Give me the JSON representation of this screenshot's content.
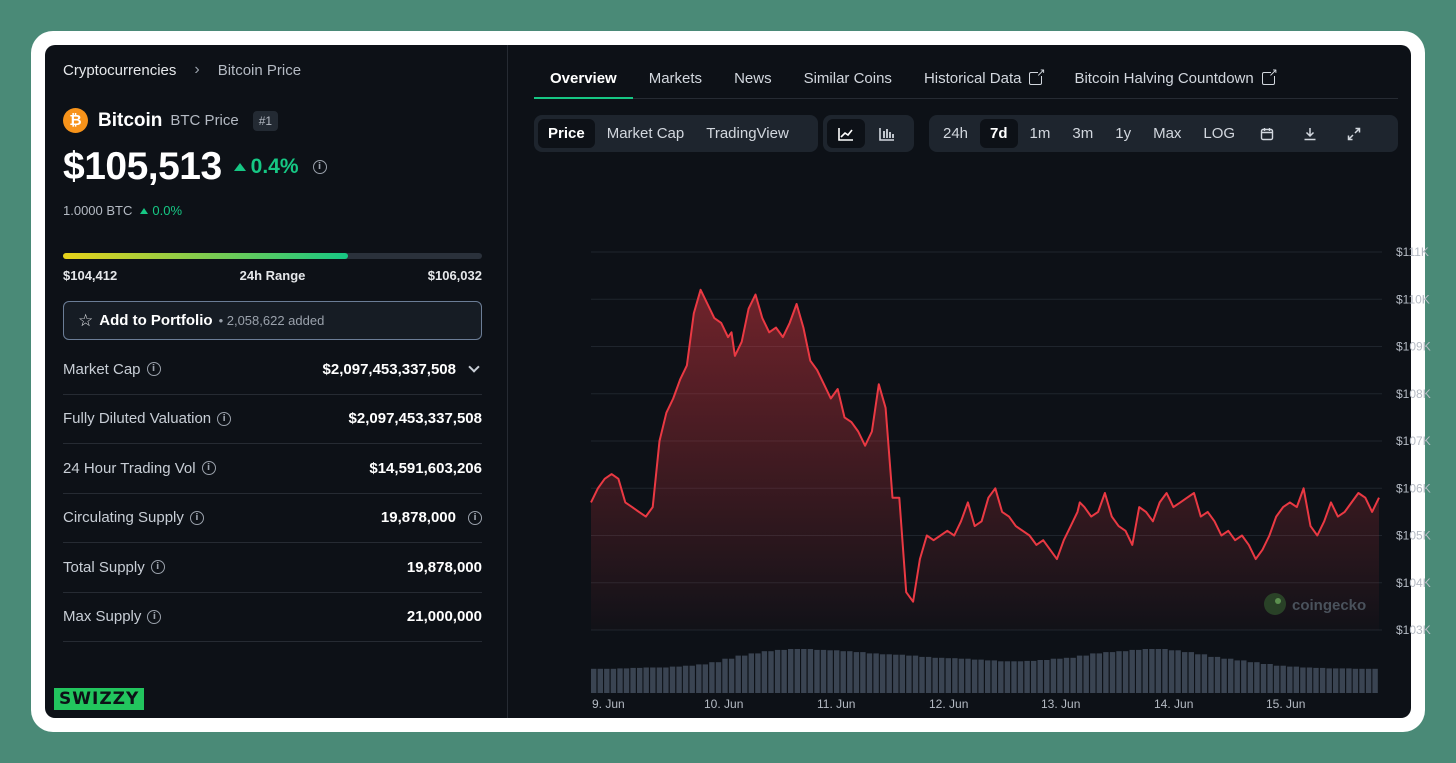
{
  "breadcrumb": {
    "root": "Cryptocurrencies",
    "current": "Bitcoin Price"
  },
  "coin": {
    "name": "Bitcoin",
    "symbol_label": "BTC Price",
    "rank": "#1",
    "logo_glyph": "₿"
  },
  "price": {
    "value": "$105,513",
    "change": "0.4%",
    "btc_value": "1.0000 BTC",
    "btc_change": "0.0%"
  },
  "range_24h": {
    "low": "$104,412",
    "label": "24h Range",
    "high": "$106,032",
    "fill_fraction": 0.68
  },
  "portfolio": {
    "label": "Add to Portfolio",
    "count": "• 2,058,622 added"
  },
  "stats": [
    {
      "label": "Market Cap",
      "value": "$2,097,453,337,508"
    },
    {
      "label": "Fully Diluted Valuation",
      "value": "$2,097,453,337,508"
    },
    {
      "label": "24 Hour Trading Vol",
      "value": "$14,591,603,206"
    },
    {
      "label": "Circulating Supply",
      "value": "19,878,000"
    },
    {
      "label": "Total Supply",
      "value": "19,878,000"
    },
    {
      "label": "Max Supply",
      "value": "21,000,000"
    }
  ],
  "brand_tag": "SWIZZY",
  "tabs": [
    "Overview",
    "Markets",
    "News",
    "Similar Coins",
    "Historical Data",
    "Bitcoin Halving Countdown"
  ],
  "chart_type_buttons": [
    "Price",
    "Market Cap",
    "TradingView"
  ],
  "range_buttons": [
    "24h",
    "7d",
    "1m",
    "3m",
    "1y",
    "Max",
    "LOG"
  ],
  "watermark": "coingecko",
  "colors": {
    "accent": "#16c784",
    "line": "#ea3943",
    "brand": "#22c55e"
  },
  "chart_data": {
    "type": "line",
    "title": "",
    "xlabel": "",
    "ylabel": "",
    "ylim": [
      102000,
      111000
    ],
    "y_ticks": [
      "$111K",
      "$110K",
      "$109K",
      "$108K",
      "$107K",
      "$106K",
      "$105K",
      "$104K",
      "$103K"
    ],
    "y_tick_values": [
      111000,
      110000,
      109000,
      108000,
      107000,
      106000,
      105000,
      104000,
      103000
    ],
    "x_ticks": [
      "9. Jun",
      "10. Jun",
      "11. Jun",
      "12. Jun",
      "13. Jun",
      "14. Jun",
      "15. Jun"
    ],
    "x_range_days": [
      8.8,
      15.7
    ],
    "series": [
      {
        "t": [
          8.8,
          8.86,
          8.92,
          8.98,
          9.04,
          9.1,
          9.16,
          9.22,
          9.28,
          9.34,
          9.4,
          9.46,
          9.52,
          9.58,
          9.64,
          9.7,
          9.76,
          9.82,
          9.88,
          9.94,
          10.0,
          10.03,
          10.06,
          10.12,
          10.18,
          10.24,
          10.3,
          10.36,
          10.42,
          10.48,
          10.54,
          10.6,
          10.66,
          10.72,
          10.78,
          10.84,
          10.9,
          10.96,
          11.02,
          11.08,
          11.14,
          11.2,
          11.26,
          11.32,
          11.38,
          11.44,
          11.5,
          11.56,
          11.62,
          11.68,
          11.74,
          11.8,
          11.86,
          11.92,
          11.98,
          12.04,
          12.1,
          12.16,
          12.22,
          12.28,
          12.34,
          12.4,
          12.46,
          12.52,
          12.58,
          12.64,
          12.7,
          12.76,
          12.82,
          12.88,
          12.94,
          13.0,
          13.06,
          13.08,
          13.12,
          13.18,
          13.24,
          13.3,
          13.36,
          13.42,
          13.48,
          13.54,
          13.6,
          13.66,
          13.72,
          13.78,
          13.84,
          13.9,
          13.96,
          14.02,
          14.08,
          14.14,
          14.2,
          14.26,
          14.32,
          14.38,
          14.44,
          14.5,
          14.56,
          14.62,
          14.68,
          14.74,
          14.8,
          14.86,
          14.92,
          14.98,
          15.04,
          15.1,
          15.16,
          15.22,
          15.28,
          15.34,
          15.4,
          15.46,
          15.52,
          15.58,
          15.64,
          15.7
        ],
        "values": [
          105700,
          106000,
          106200,
          106300,
          106200,
          105700,
          105600,
          105500,
          105400,
          105600,
          107000,
          107600,
          107900,
          108300,
          108600,
          109700,
          110200,
          109900,
          109600,
          109500,
          109200,
          109300,
          108800,
          109100,
          109800,
          110100,
          109600,
          109300,
          109400,
          109200,
          109500,
          109900,
          109400,
          108700,
          108500,
          108200,
          107900,
          108100,
          107500,
          107400,
          107200,
          106900,
          107200,
          108200,
          107700,
          105800,
          105800,
          103800,
          103600,
          104500,
          105000,
          104900,
          105000,
          105100,
          105000,
          105300,
          105700,
          105200,
          105300,
          105800,
          106000,
          105500,
          105400,
          105200,
          105100,
          105000,
          104800,
          104900,
          104700,
          104500,
          104900,
          105200,
          105500,
          105700,
          105600,
          105400,
          105500,
          105900,
          105400,
          105200,
          105100,
          104800,
          105600,
          105500,
          105300,
          105700,
          105900,
          105600,
          105700,
          105800,
          105900,
          105400,
          105500,
          105300,
          105000,
          105100,
          104900,
          105000,
          104800,
          104500,
          104700,
          105000,
          105400,
          105600,
          105700,
          105600,
          106000,
          105200,
          105000,
          105300,
          105700,
          105400,
          105500,
          105700,
          105900,
          105800,
          105500,
          105800
        ],
        "name": ""
      }
    ],
    "volume_relative": [
      0.55,
      0.55,
      0.56,
      0.57,
      0.58,
      0.58,
      0.6,
      0.62,
      0.65,
      0.7,
      0.78,
      0.85,
      0.9,
      0.95,
      0.98,
      1.0,
      1.0,
      0.98,
      0.97,
      0.95,
      0.93,
      0.9,
      0.88,
      0.87,
      0.85,
      0.82,
      0.8,
      0.79,
      0.78,
      0.76,
      0.74,
      0.72,
      0.72,
      0.73,
      0.75,
      0.78,
      0.8,
      0.85,
      0.9,
      0.93,
      0.95,
      0.98,
      1.0,
      1.0,
      0.97,
      0.93,
      0.88,
      0.82,
      0.78,
      0.74,
      0.7,
      0.66,
      0.62,
      0.6,
      0.58,
      0.57,
      0.56,
      0.56,
      0.55,
      0.55
    ]
  }
}
